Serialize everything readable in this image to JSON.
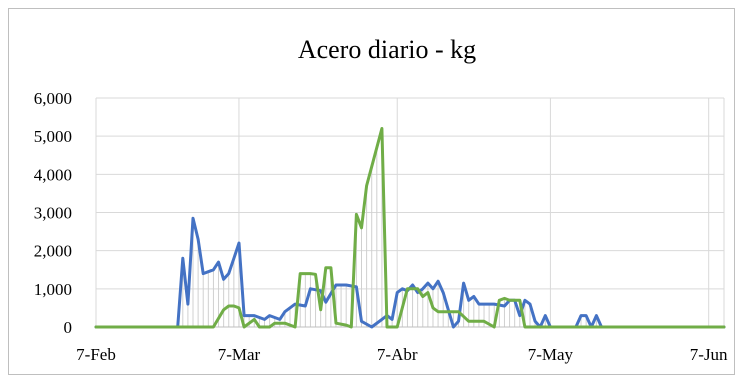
{
  "chart_data": {
    "type": "line",
    "title": "Acero  diario  - kg",
    "xlabel": "",
    "ylabel": "",
    "ylim": [
      0,
      6000
    ],
    "y_ticks": [
      0,
      1000,
      2000,
      3000,
      4000,
      5000,
      6000
    ],
    "y_tick_labels": [
      "0",
      "1,000",
      "2,000",
      "3,000",
      "4,000",
      "5,000",
      "6,000"
    ],
    "x_ticks": [
      "2019-02-07",
      "2019-03-07",
      "2019-04-07",
      "2019-05-07",
      "2019-06-07"
    ],
    "x_tick_labels": [
      "7-Feb",
      "7-Mar",
      "7-Abr",
      "7-May",
      "7-Jun"
    ],
    "xlim": [
      "2019-02-07",
      "2019-06-10"
    ],
    "grid": {
      "vertical": true,
      "horizontal": true
    },
    "legend": "none",
    "series": [
      {
        "color": "#4472c4",
        "points": [
          [
            "2019-02-07",
            0
          ],
          [
            "2019-02-23",
            0
          ],
          [
            "2019-02-24",
            1800
          ],
          [
            "2019-02-25",
            600
          ],
          [
            "2019-02-26",
            2850
          ],
          [
            "2019-02-27",
            2300
          ],
          [
            "2019-02-28",
            1400
          ],
          [
            "2019-03-01",
            1450
          ],
          [
            "2019-03-02",
            1500
          ],
          [
            "2019-03-03",
            1700
          ],
          [
            "2019-03-04",
            1250
          ],
          [
            "2019-03-05",
            1400
          ],
          [
            "2019-03-06",
            1800
          ],
          [
            "2019-03-07",
            2200
          ],
          [
            "2019-03-08",
            300
          ],
          [
            "2019-03-10",
            300
          ],
          [
            "2019-03-12",
            200
          ],
          [
            "2019-03-13",
            300
          ],
          [
            "2019-03-15",
            200
          ],
          [
            "2019-03-16",
            400
          ],
          [
            "2019-03-18",
            600
          ],
          [
            "2019-03-20",
            550
          ],
          [
            "2019-03-21",
            1000
          ],
          [
            "2019-03-23",
            950
          ],
          [
            "2019-03-24",
            650
          ],
          [
            "2019-03-26",
            1100
          ],
          [
            "2019-03-28",
            1100
          ],
          [
            "2019-03-30",
            1050
          ],
          [
            "2019-03-31",
            150
          ],
          [
            "2019-04-02",
            0
          ],
          [
            "2019-04-05",
            300
          ],
          [
            "2019-04-06",
            200
          ],
          [
            "2019-04-07",
            900
          ],
          [
            "2019-04-08",
            1000
          ],
          [
            "2019-04-09",
            950
          ],
          [
            "2019-04-10",
            1100
          ],
          [
            "2019-04-11",
            900
          ],
          [
            "2019-04-12",
            1000
          ],
          [
            "2019-04-13",
            1150
          ],
          [
            "2019-04-14",
            1000
          ],
          [
            "2019-04-15",
            1200
          ],
          [
            "2019-04-16",
            900
          ],
          [
            "2019-04-18",
            0
          ],
          [
            "2019-04-19",
            150
          ],
          [
            "2019-04-20",
            1150
          ],
          [
            "2019-04-21",
            700
          ],
          [
            "2019-04-22",
            800
          ],
          [
            "2019-04-23",
            600
          ],
          [
            "2019-04-26",
            600
          ],
          [
            "2019-04-28",
            550
          ],
          [
            "2019-04-29",
            700
          ],
          [
            "2019-04-30",
            700
          ],
          [
            "2019-05-01",
            300
          ],
          [
            "2019-05-02",
            700
          ],
          [
            "2019-05-03",
            600
          ],
          [
            "2019-05-04",
            150
          ],
          [
            "2019-05-05",
            0
          ],
          [
            "2019-05-06",
            300
          ],
          [
            "2019-05-07",
            0
          ],
          [
            "2019-05-12",
            0
          ],
          [
            "2019-05-13",
            300
          ],
          [
            "2019-05-14",
            300
          ],
          [
            "2019-05-15",
            0
          ],
          [
            "2019-05-16",
            300
          ],
          [
            "2019-05-17",
            0
          ],
          [
            "2019-06-10",
            0
          ]
        ]
      },
      {
        "color": "#70ad47",
        "points": [
          [
            "2019-02-07",
            0
          ],
          [
            "2019-03-02",
            0
          ],
          [
            "2019-03-04",
            450
          ],
          [
            "2019-03-05",
            550
          ],
          [
            "2019-03-06",
            550
          ],
          [
            "2019-03-07",
            500
          ],
          [
            "2019-03-08",
            0
          ],
          [
            "2019-03-10",
            200
          ],
          [
            "2019-03-11",
            0
          ],
          [
            "2019-03-13",
            0
          ],
          [
            "2019-03-14",
            100
          ],
          [
            "2019-03-16",
            100
          ],
          [
            "2019-03-18",
            0
          ],
          [
            "2019-03-19",
            1400
          ],
          [
            "2019-03-21",
            1400
          ],
          [
            "2019-03-22",
            1380
          ],
          [
            "2019-03-23",
            450
          ],
          [
            "2019-03-24",
            1550
          ],
          [
            "2019-03-25",
            1550
          ],
          [
            "2019-03-26",
            100
          ],
          [
            "2019-03-28",
            50
          ],
          [
            "2019-03-29",
            0
          ],
          [
            "2019-03-30",
            2950
          ],
          [
            "2019-03-31",
            2600
          ],
          [
            "2019-04-01",
            3700
          ],
          [
            "2019-04-03",
            4700
          ],
          [
            "2019-04-04",
            5200
          ],
          [
            "2019-04-05",
            0
          ],
          [
            "2019-04-07",
            0
          ],
          [
            "2019-04-08",
            500
          ],
          [
            "2019-04-09",
            1000
          ],
          [
            "2019-04-11",
            1000
          ],
          [
            "2019-04-12",
            800
          ],
          [
            "2019-04-13",
            900
          ],
          [
            "2019-04-14",
            500
          ],
          [
            "2019-04-15",
            400
          ],
          [
            "2019-04-19",
            400
          ],
          [
            "2019-04-21",
            150
          ],
          [
            "2019-04-23",
            150
          ],
          [
            "2019-04-24",
            150
          ],
          [
            "2019-04-26",
            0
          ],
          [
            "2019-04-27",
            700
          ],
          [
            "2019-04-28",
            750
          ],
          [
            "2019-04-29",
            700
          ],
          [
            "2019-04-30",
            700
          ],
          [
            "2019-05-01",
            700
          ],
          [
            "2019-05-02",
            0
          ],
          [
            "2019-06-10",
            0
          ]
        ]
      }
    ]
  }
}
